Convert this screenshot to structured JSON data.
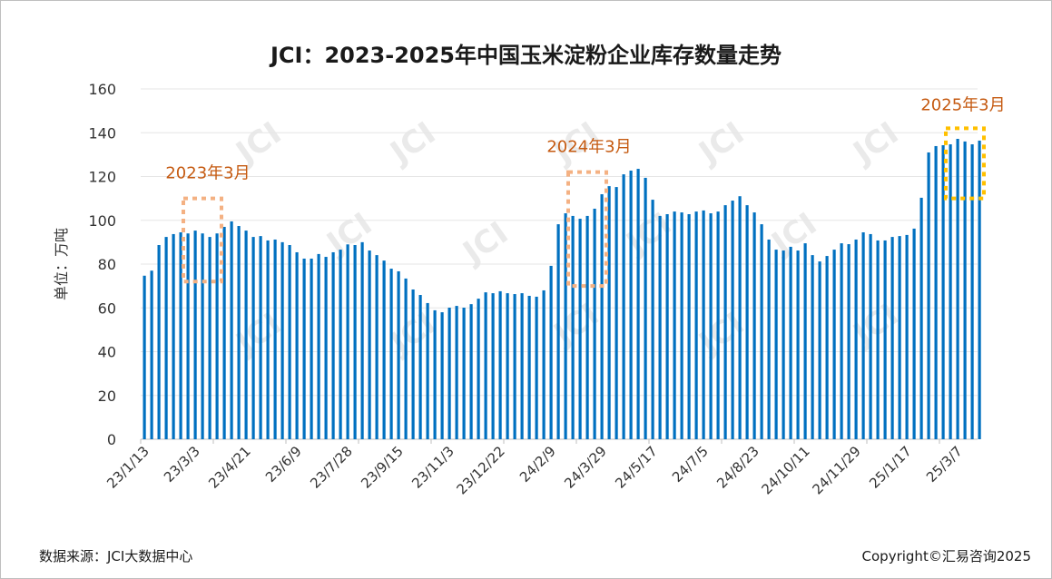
{
  "chart_data": {
    "type": "bar",
    "title": "JCI：2023-2025年中国玉米淀粉企业库存数量走势",
    "ylabel": "单位：万吨",
    "xlabel": "",
    "ylim": [
      0,
      160
    ],
    "yticks": [
      0,
      20,
      40,
      60,
      80,
      100,
      120,
      140,
      160
    ],
    "grid": true,
    "bar_color": "#0070c0",
    "x_tick_labels": [
      "23/1/13",
      "23/3/3",
      "23/4/21",
      "23/6/9",
      "23/7/28",
      "23/9/15",
      "23/11/3",
      "23/12/22",
      "24/2/9",
      "24/3/29",
      "24/5/17",
      "24/7/5",
      "24/8/23",
      "24/10/11",
      "24/11/29",
      "25/1/17",
      "25/3/7"
    ],
    "values": [
      74.7,
      77,
      88.7,
      92.4,
      93.7,
      94.5,
      94,
      95.3,
      94,
      92.4,
      94,
      97,
      99.5,
      97.4,
      95.3,
      92.4,
      92.8,
      90.8,
      91.2,
      90,
      88.7,
      85.4,
      82.5,
      82.5,
      84.6,
      83.3,
      85.4,
      86.6,
      89,
      88.7,
      90,
      86.2,
      84.1,
      81.6,
      77.9,
      76.7,
      73.4,
      68.4,
      65.9,
      62.2,
      58.9,
      58,
      60.1,
      60.9,
      60.1,
      61.7,
      64.2,
      67.1,
      66.7,
      67.6,
      66.7,
      66.3,
      66.7,
      65.5,
      65.1,
      68,
      79.2,
      98.2,
      103.2,
      102,
      100.7,
      102,
      105.3,
      111.9,
      115.6,
      115.2,
      121,
      122.7,
      123.5,
      119.4,
      109.4,
      102,
      102.8,
      104,
      103.6,
      102.8,
      104,
      104.5,
      103.2,
      104,
      106.9,
      109,
      111,
      106.9,
      103.6,
      98.2,
      91.2,
      86.6,
      86.2,
      87.9,
      86.2,
      89.5,
      84.1,
      81.2,
      83.7,
      86.6,
      89.5,
      89.1,
      91.2,
      94.5,
      93.7,
      90.8,
      90.8,
      92.4,
      92.8,
      93.3,
      96.2,
      110.3,
      131,
      133.9,
      134.3,
      134.7,
      137.2,
      136,
      134.7,
      136.4
    ],
    "annotations": [
      {
        "text": "2023年3月",
        "color": "#c55a11",
        "box_color": "#f4b183",
        "bar_range": [
          7,
          11
        ],
        "value_range": [
          72,
          110
        ]
      },
      {
        "text": "2024年3月",
        "color": "#c55a11",
        "box_color": "#f4b183",
        "bar_range": [
          60,
          64
        ],
        "value_range": [
          70,
          122
        ]
      },
      {
        "text": "2025年3月",
        "color": "#c55a11",
        "box_color": "#ffc000",
        "bar_range": [
          112,
          116
        ],
        "value_range": [
          110,
          142
        ]
      }
    ]
  },
  "watermark": "JCI",
  "footer": {
    "source": "数据来源：JCI大数据中心",
    "copyright": "Copyright©汇易咨询2025"
  }
}
